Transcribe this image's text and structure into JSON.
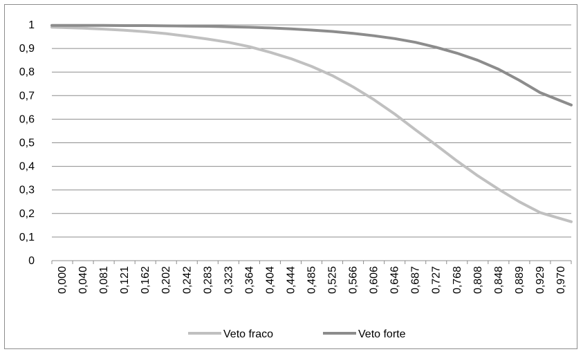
{
  "chart_data": {
    "type": "line",
    "title": "",
    "xlabel": "",
    "ylabel": "",
    "ylim": [
      0,
      1
    ],
    "y_ticks": [
      "0",
      "0,1",
      "0,2",
      "0,3",
      "0,4",
      "0,5",
      "0,6",
      "0,7",
      "0,8",
      "0,9",
      "1"
    ],
    "x_tick_labels": [
      "0,000",
      "0,040",
      "0,081",
      "0,121",
      "0,162",
      "0,202",
      "0,242",
      "0,283",
      "0,323",
      "0,364",
      "0,404",
      "0,444",
      "0,485",
      "0,525",
      "0,566",
      "0,606",
      "0,646",
      "0,687",
      "0,727",
      "0,768",
      "0,808",
      "0,848",
      "0,889",
      "0,929",
      "0,970"
    ],
    "grid": true,
    "legend_position": "bottom",
    "series": [
      {
        "name": "Veto fraco",
        "color": "#c0c0c0",
        "values": [
          0.99,
          0.986,
          0.982,
          0.977,
          0.971,
          0.963,
          0.952,
          0.94,
          0.926,
          0.908,
          0.884,
          0.857,
          0.824,
          0.785,
          0.737,
          0.683,
          0.622,
          0.555,
          0.49,
          0.423,
          0.36,
          0.303,
          0.25,
          0.204,
          0.165
        ]
      },
      {
        "name": "Veto forte",
        "color": "#8c8c8c",
        "values": [
          0.998,
          0.998,
          0.998,
          0.997,
          0.997,
          0.996,
          0.995,
          0.994,
          0.992,
          0.99,
          0.987,
          0.983,
          0.978,
          0.972,
          0.964,
          0.954,
          0.942,
          0.926,
          0.905,
          0.88,
          0.85,
          0.812,
          0.765,
          0.713,
          0.66
        ]
      }
    ]
  }
}
